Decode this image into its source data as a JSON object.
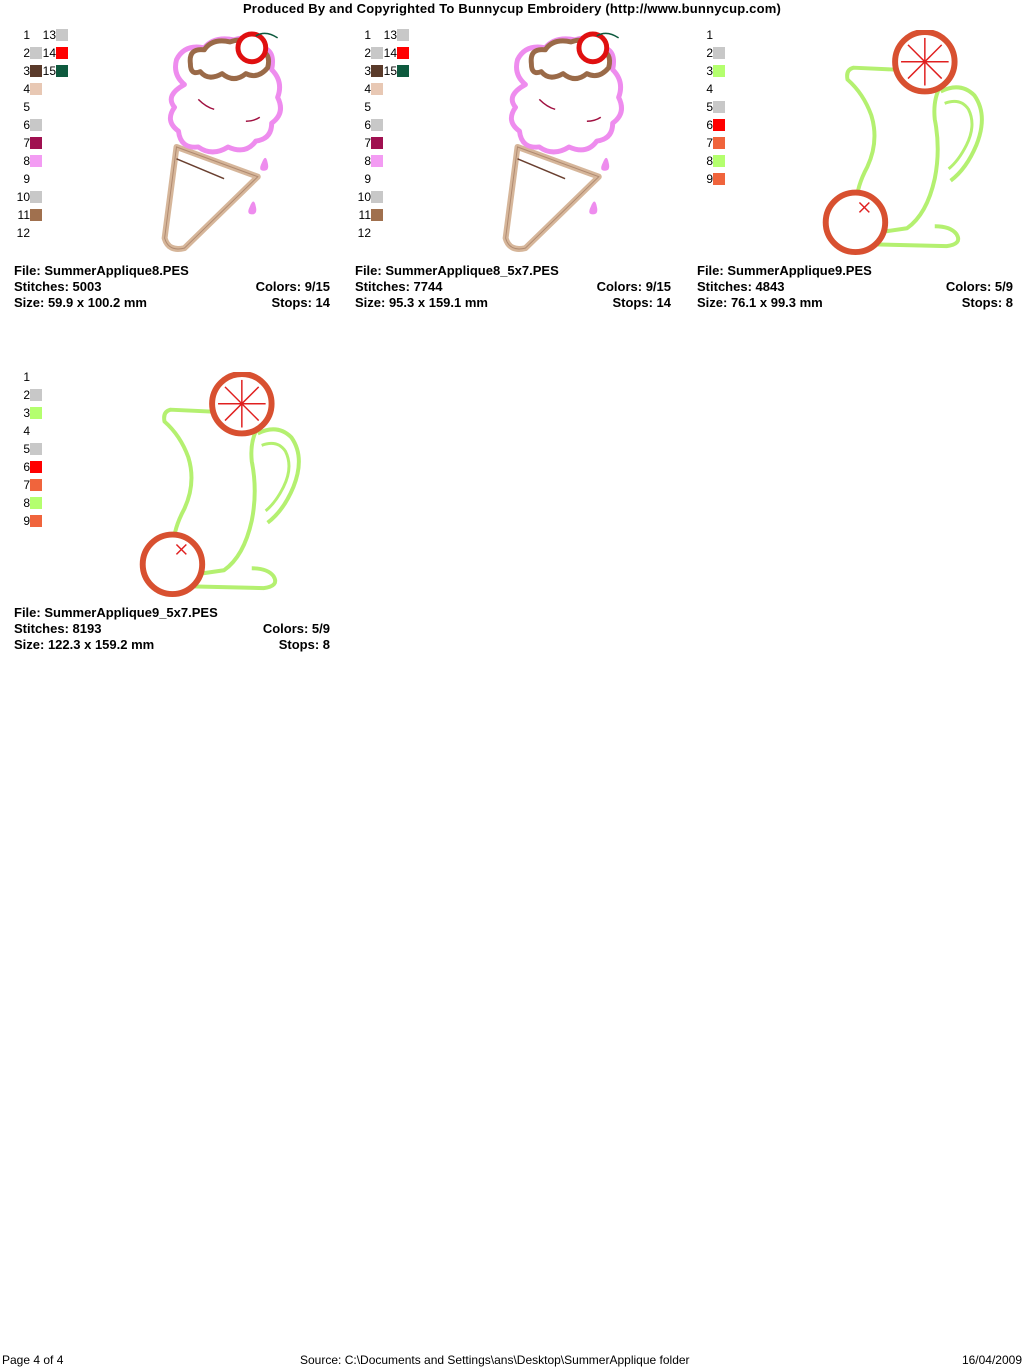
{
  "header": {
    "title": "Produced By and Copyrighted To Bunnycup Embroidery (http://www.bunnycup.com)"
  },
  "cards": [
    {
      "file_label": "File: SummerApplique8.PES",
      "stitches_label": "Stitches: 5003",
      "colors_label": "Colors: 9/15",
      "size_label": "Size: 59.9 x 100.2 mm",
      "stops_label": "Stops: 14",
      "palette_left": [
        {
          "n": "1",
          "color": ""
        },
        {
          "n": "2",
          "color": "#c8c8c8"
        },
        {
          "n": "3",
          "color": "#5a3a2a"
        },
        {
          "n": "4",
          "color": "#e8c8b4"
        },
        {
          "n": "5",
          "color": ""
        },
        {
          "n": "6",
          "color": "#c8c8c8"
        },
        {
          "n": "7",
          "color": "#a01050"
        },
        {
          "n": "8",
          "color": "#f39cf3"
        },
        {
          "n": "9",
          "color": ""
        },
        {
          "n": "10",
          "color": "#c8c8c8"
        },
        {
          "n": "11",
          "color": "#a0704e"
        },
        {
          "n": "12",
          "color": ""
        }
      ],
      "palette_right": [
        {
          "n": "13",
          "color": "#c8c8c8"
        },
        {
          "n": "14",
          "color": "#ff0000"
        },
        {
          "n": "15",
          "color": "#0e5a3e"
        }
      ],
      "design_icon": "ice-cream-cone"
    },
    {
      "file_label": "File: SummerApplique8_5x7.PES",
      "stitches_label": "Stitches: 7744",
      "colors_label": "Colors: 9/15",
      "size_label": "Size: 95.3 x 159.1 mm",
      "stops_label": "Stops: 14",
      "palette_left": [
        {
          "n": "1",
          "color": ""
        },
        {
          "n": "2",
          "color": "#c8c8c8"
        },
        {
          "n": "3",
          "color": "#5a3a2a"
        },
        {
          "n": "4",
          "color": "#e8c8b4"
        },
        {
          "n": "5",
          "color": ""
        },
        {
          "n": "6",
          "color": "#c8c8c8"
        },
        {
          "n": "7",
          "color": "#a01050"
        },
        {
          "n": "8",
          "color": "#f39cf3"
        },
        {
          "n": "9",
          "color": ""
        },
        {
          "n": "10",
          "color": "#c8c8c8"
        },
        {
          "n": "11",
          "color": "#a0704e"
        },
        {
          "n": "12",
          "color": ""
        }
      ],
      "palette_right": [
        {
          "n": "13",
          "color": "#c8c8c8"
        },
        {
          "n": "14",
          "color": "#ff0000"
        },
        {
          "n": "15",
          "color": "#0e5a3e"
        }
      ],
      "design_icon": "ice-cream-cone"
    },
    {
      "file_label": "File: SummerApplique9.PES",
      "stitches_label": "Stitches: 4843",
      "colors_label": "Colors: 5/9",
      "size_label": "Size: 76.1 x 99.3 mm",
      "stops_label": "Stops: 8",
      "palette_left": [
        {
          "n": "1",
          "color": ""
        },
        {
          "n": "2",
          "color": "#c8c8c8"
        },
        {
          "n": "3",
          "color": "#b4ff6e"
        },
        {
          "n": "4",
          "color": ""
        },
        {
          "n": "5",
          "color": "#c8c8c8"
        },
        {
          "n": "6",
          "color": "#ff0000"
        },
        {
          "n": "7",
          "color": "#f0643c"
        },
        {
          "n": "8",
          "color": "#b4ff6e"
        },
        {
          "n": "9",
          "color": "#f0643c"
        }
      ],
      "palette_right": [],
      "design_icon": "lemonade-pitcher"
    },
    {
      "file_label": "File: SummerApplique9_5x7.PES",
      "stitches_label": "Stitches: 8193",
      "colors_label": "Colors: 5/9",
      "size_label": "Size: 122.3 x 159.2 mm",
      "stops_label": "Stops: 8",
      "palette_left": [
        {
          "n": "1",
          "color": ""
        },
        {
          "n": "2",
          "color": "#c8c8c8"
        },
        {
          "n": "3",
          "color": "#b4ff6e"
        },
        {
          "n": "4",
          "color": ""
        },
        {
          "n": "5",
          "color": "#c8c8c8"
        },
        {
          "n": "6",
          "color": "#ff0000"
        },
        {
          "n": "7",
          "color": "#f0643c"
        },
        {
          "n": "8",
          "color": "#b4ff6e"
        },
        {
          "n": "9",
          "color": "#f0643c"
        }
      ],
      "palette_right": [],
      "design_icon": "lemonade-pitcher"
    }
  ],
  "footer": {
    "page": "Page 4 of 4",
    "source": "Source: C:\\Documents and Settings\\ans\\Desktop\\SummerApplique folder",
    "date": "16/04/2009"
  }
}
